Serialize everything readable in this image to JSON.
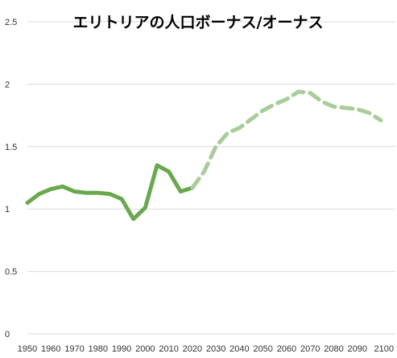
{
  "chart_data": {
    "type": "line",
    "title": "エリトリアの人口ボーナス/オーナス",
    "xlabel": "",
    "ylabel": "",
    "xlim": [
      1950,
      2100
    ],
    "ylim": [
      0,
      2.5
    ],
    "grid": true,
    "legend": "none",
    "x_ticks": [
      "1950",
      "1960",
      "1970",
      "1980",
      "1990",
      "2000",
      "2010",
      "2020",
      "2030",
      "2040",
      "2050",
      "2060",
      "2070",
      "2080",
      "2090",
      "2100"
    ],
    "y_ticks": [
      "0",
      "0.5",
      "1",
      "1.5",
      "2",
      "2.5"
    ],
    "series": [
      {
        "style": "solid",
        "color": "#6aa84f",
        "points": [
          [
            1950,
            1.05
          ],
          [
            1955,
            1.12
          ],
          [
            1960,
            1.16
          ],
          [
            1965,
            1.18
          ],
          [
            1970,
            1.14
          ],
          [
            1975,
            1.13
          ],
          [
            1980,
            1.13
          ],
          [
            1985,
            1.12
          ],
          [
            1990,
            1.08
          ],
          [
            1995,
            0.92
          ],
          [
            2000,
            1.01
          ],
          [
            2005,
            1.35
          ],
          [
            2010,
            1.3
          ],
          [
            2015,
            1.14
          ],
          [
            2020,
            1.17
          ]
        ]
      },
      {
        "style": "dashed",
        "color": "#a9cc9a",
        "points": [
          [
            2020,
            1.17
          ],
          [
            2025,
            1.3
          ],
          [
            2030,
            1.5
          ],
          [
            2035,
            1.61
          ],
          [
            2040,
            1.65
          ],
          [
            2045,
            1.72
          ],
          [
            2050,
            1.79
          ],
          [
            2055,
            1.84
          ],
          [
            2060,
            1.88
          ],
          [
            2065,
            1.94
          ],
          [
            2070,
            1.93
          ],
          [
            2075,
            1.86
          ],
          [
            2080,
            1.82
          ],
          [
            2085,
            1.81
          ],
          [
            2090,
            1.8
          ],
          [
            2095,
            1.77
          ],
          [
            2100,
            1.71
          ]
        ]
      }
    ]
  }
}
